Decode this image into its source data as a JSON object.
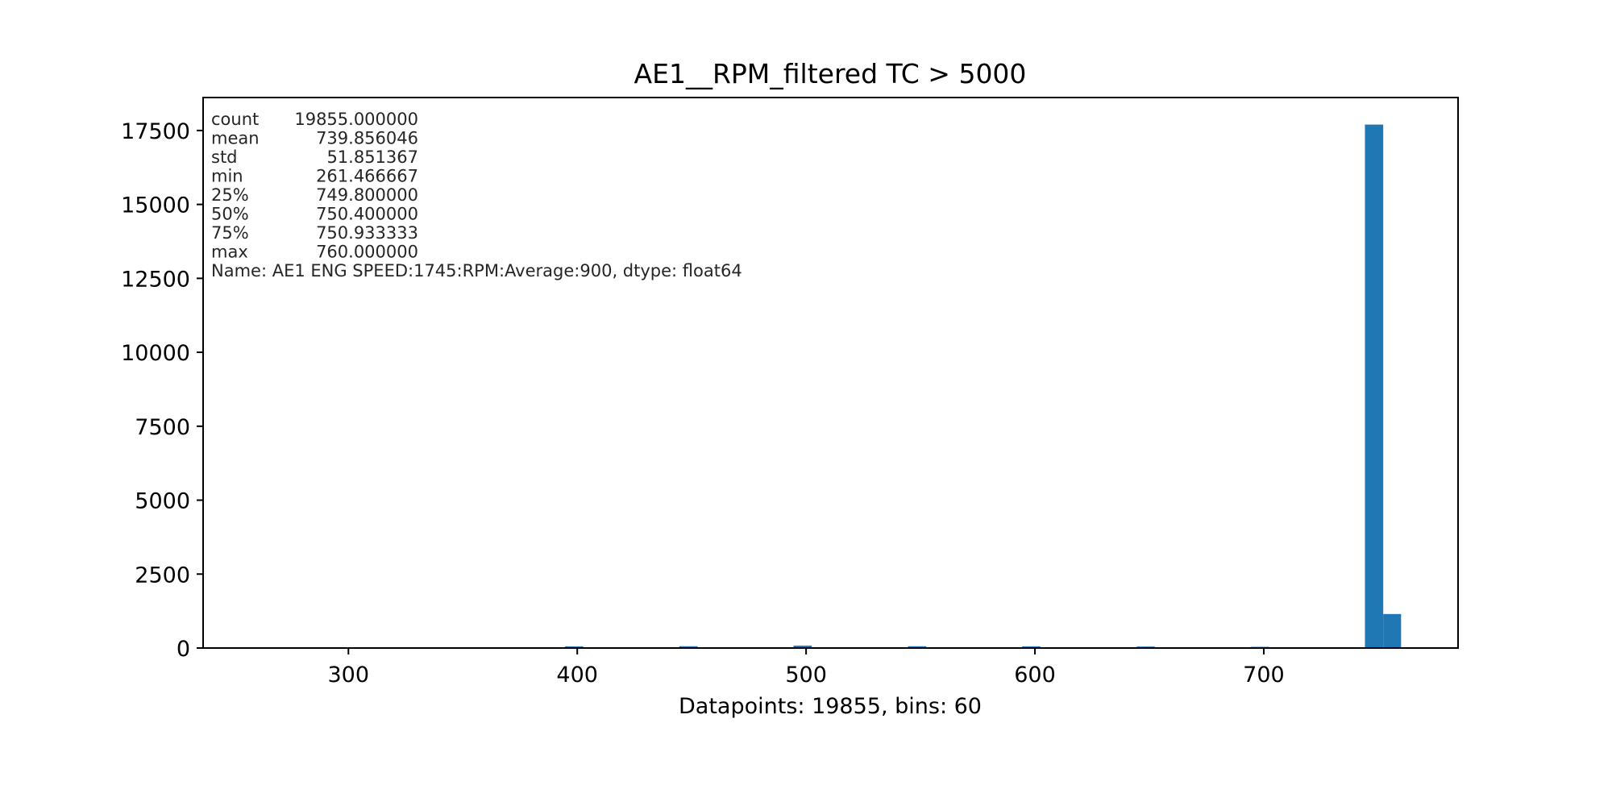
{
  "chart_data": {
    "type": "bar",
    "title": "AE1__RPM_filtered TC > 5000",
    "xlabel": "Datapoints: 19855, bins: 60",
    "ylabel": "",
    "xlim": [
      236.5,
      784.9
    ],
    "ylim": [
      0,
      18615
    ],
    "x_ticks": [
      300,
      400,
      500,
      600,
      700
    ],
    "y_ticks": [
      0,
      2500,
      5000,
      7500,
      10000,
      12500,
      15000,
      17500
    ],
    "bar_color": "#1f77b4",
    "grid": false,
    "bins": [
      {
        "x0": 394.6,
        "x1": 402.6,
        "value": 55
      },
      {
        "x0": 444.6,
        "x1": 452.6,
        "value": 60
      },
      {
        "x0": 494.5,
        "x1": 502.5,
        "value": 80
      },
      {
        "x0": 544.5,
        "x1": 552.5,
        "value": 60
      },
      {
        "x0": 594.4,
        "x1": 602.4,
        "value": 55
      },
      {
        "x0": 644.4,
        "x1": 652.4,
        "value": 50
      },
      {
        "x0": 694.3,
        "x1": 702.3,
        "value": 40
      },
      {
        "x0": 744.2,
        "x1": 752.2,
        "value": 17700
      },
      {
        "x0": 752.2,
        "x1": 760.0,
        "value": 1150
      }
    ],
    "annotation": {
      "lines": [
        {
          "key": "count",
          "value": "19855.000000"
        },
        {
          "key": "mean",
          "value": "739.856046"
        },
        {
          "key": "std",
          "value": "51.851367"
        },
        {
          "key": "min",
          "value": "261.466667"
        },
        {
          "key": "25%",
          "value": "749.800000"
        },
        {
          "key": "50%",
          "value": "750.400000"
        },
        {
          "key": "75%",
          "value": "750.933333"
        },
        {
          "key": "max",
          "value": "760.000000"
        }
      ],
      "footer": "Name: AE1 ENG SPEED:1745:RPM:Average:900, dtype: float64"
    }
  }
}
